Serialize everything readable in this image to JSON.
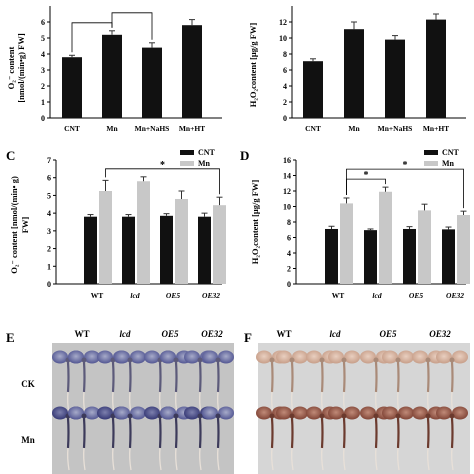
{
  "colors": {
    "bar_black": "#111111",
    "bar_gray": "#c8c8c8",
    "panel_e_bg": "#c4c4c4",
    "panel_f_bg": "#d6d6d6",
    "nbt_stain": "#4b4f8e",
    "dab_stain": "#a0624f"
  },
  "chart_data": [
    {
      "id": "A",
      "type": "bar",
      "panel_label": "",
      "categories": [
        "CNT",
        "Mn",
        "Mn+NaHS",
        "Mn+HT"
      ],
      "values": [
        3.8,
        5.2,
        4.4,
        5.8
      ],
      "errors": [
        0.12,
        0.25,
        0.3,
        0.35
      ],
      "ylabel_line1": "O₂⁻ content",
      "ylabel_line2": "[nmol/(min•g) FW]",
      "ylim": [
        0,
        7
      ],
      "yticks": [
        0,
        1,
        2,
        3,
        4,
        5,
        6
      ],
      "significance": [
        {
          "from": 0,
          "to": 1,
          "mark": ""
        },
        {
          "from": 1,
          "to": 2,
          "mark": ""
        }
      ],
      "legend": []
    },
    {
      "id": "B",
      "type": "bar",
      "panel_label": "",
      "categories": [
        "CNT",
        "Mn",
        "Mn+NaHS",
        "Mn+HT"
      ],
      "values": [
        7.1,
        11.1,
        9.8,
        12.3
      ],
      "errors": [
        0.3,
        0.9,
        0.5,
        0.7
      ],
      "ylabel_line1": "H₂O₂content [μg/g FW]",
      "ylabel_line2": "",
      "ylim": [
        0,
        14
      ],
      "yticks": [
        0,
        2,
        4,
        6,
        8,
        10,
        12
      ],
      "significance": [],
      "legend": []
    },
    {
      "id": "C",
      "type": "bar",
      "panel_label": "C",
      "categories": [
        "WT",
        "lcd",
        "OE5",
        "OE32"
      ],
      "series": [
        {
          "name": "CNT",
          "values": [
            3.8,
            3.8,
            3.85,
            3.8
          ],
          "errors": [
            0.12,
            0.12,
            0.12,
            0.2
          ]
        },
        {
          "name": "Mn",
          "values": [
            5.25,
            5.8,
            4.8,
            4.45
          ],
          "errors": [
            0.6,
            0.25,
            0.45,
            0.45
          ]
        }
      ],
      "ylabel_line1": "O₂⁻ content [nmol/(min• g)",
      "ylabel_line2": "FW]",
      "ylim": [
        0,
        7
      ],
      "yticks": [
        0,
        1,
        2,
        3,
        4,
        5,
        6,
        7
      ],
      "significance": [
        {
          "from": 0,
          "to": 3,
          "mark": "*"
        }
      ],
      "legend": [
        "CNT",
        "Mn"
      ]
    },
    {
      "id": "D",
      "type": "bar",
      "panel_label": "D",
      "categories": [
        "WT",
        "lcd",
        "OE5",
        "OE32"
      ],
      "series": [
        {
          "name": "CNT",
          "values": [
            7.1,
            6.95,
            7.1,
            7.05
          ],
          "errors": [
            0.35,
            0.15,
            0.3,
            0.3
          ]
        },
        {
          "name": "Mn",
          "values": [
            10.4,
            11.9,
            9.5,
            8.9
          ],
          "errors": [
            0.7,
            0.6,
            0.8,
            0.5
          ]
        }
      ],
      "ylabel_line1": "H₂O₂content [μg/g FW]",
      "ylabel_line2": "",
      "ylim": [
        0,
        16
      ],
      "yticks": [
        0,
        2,
        4,
        6,
        8,
        10,
        12,
        14,
        16
      ],
      "significance": [
        {
          "from": 0,
          "to": 1,
          "mark": "*"
        },
        {
          "from": 0,
          "to": 3,
          "mark": "*"
        }
      ],
      "legend": [
        "CNT",
        "Mn"
      ]
    }
  ],
  "staining": {
    "E": {
      "label": "E",
      "columns": [
        "WT",
        "lcd",
        "OE5",
        "OE32"
      ],
      "rows": [
        "CK",
        "Mn"
      ]
    },
    "F": {
      "label": "F",
      "columns": [
        "WT",
        "lcd",
        "OE5",
        "OE32"
      ]
    }
  }
}
